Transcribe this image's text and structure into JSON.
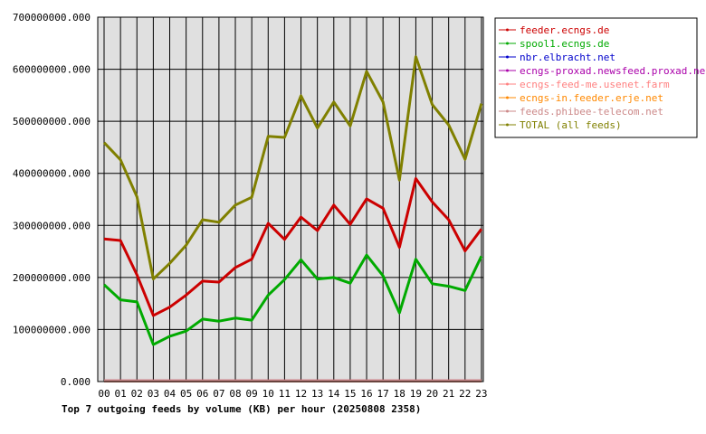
{
  "chart_data": {
    "type": "line",
    "title": "Top 7 outgoing feeds by volume (KB) per hour (20250808 2358)",
    "xlabel": "",
    "ylabel": "",
    "categories": [
      "00",
      "01",
      "02",
      "03",
      "04",
      "05",
      "06",
      "07",
      "08",
      "09",
      "10",
      "11",
      "12",
      "13",
      "14",
      "15",
      "16",
      "17",
      "18",
      "19",
      "20",
      "21",
      "22",
      "23"
    ],
    "ylim": [
      0,
      700000000
    ],
    "yticks": [
      0,
      100000000,
      200000000,
      300000000,
      400000000,
      500000000,
      600000000,
      700000000
    ],
    "ytick_labels": [
      "0.000",
      "100000000.000",
      "200000000.000",
      "300000000.000",
      "400000000.000",
      "500000000.000",
      "600000000.000",
      "700000000.000"
    ],
    "grid": true,
    "legend_position": "top-right",
    "series": [
      {
        "name": "feeder.ecngs.de",
        "color": "#cc0000",
        "values": [
          274000000,
          271000000,
          205000000,
          127000000,
          143000000,
          166000000,
          193000000,
          191000000,
          219000000,
          235000000,
          304000000,
          273000000,
          316000000,
          290000000,
          339000000,
          302000000,
          351000000,
          333000000,
          258000000,
          390000000,
          345000000,
          311000000,
          251000000,
          293000000
        ]
      },
      {
        "name": "spool1.ecngs.de",
        "color": "#00aa00",
        "values": [
          186000000,
          157000000,
          153000000,
          71000000,
          87000000,
          97000000,
          120000000,
          116000000,
          122000000,
          118000000,
          166000000,
          196000000,
          234000000,
          197000000,
          200000000,
          189000000,
          243000000,
          203000000,
          132000000,
          235000000,
          188000000,
          183000000,
          175000000,
          241000000
        ]
      },
      {
        "name": "nbr.elbracht.net",
        "color": "#0000cc",
        "values": [
          1000000,
          1000000,
          1000000,
          1000000,
          1000000,
          1000000,
          1000000,
          1000000,
          1000000,
          1000000,
          1000000,
          1000000,
          1000000,
          1000000,
          1000000,
          1000000,
          1000000,
          1000000,
          1000000,
          1000000,
          1000000,
          1000000,
          1000000,
          1000000
        ]
      },
      {
        "name": "ecngs-proxad.newsfeed.proxad.net",
        "color": "#aa00aa",
        "values": [
          1000000,
          1000000,
          1000000,
          1000000,
          1000000,
          1000000,
          1000000,
          1000000,
          1000000,
          1000000,
          1000000,
          1000000,
          1000000,
          1000000,
          1000000,
          1000000,
          1000000,
          1000000,
          1000000,
          1000000,
          1000000,
          1000000,
          1000000,
          1000000
        ]
      },
      {
        "name": "ecngs-feed-me.usenet.farm",
        "color": "#ff8080",
        "values": [
          1000000,
          1000000,
          1000000,
          1000000,
          1000000,
          1000000,
          1000000,
          1000000,
          1000000,
          1000000,
          1000000,
          1000000,
          1000000,
          1000000,
          1000000,
          1000000,
          1000000,
          1000000,
          1000000,
          1000000,
          1000000,
          1000000,
          1000000,
          1000000
        ]
      },
      {
        "name": "ecngs-in.feeder.erje.net",
        "color": "#ff8800",
        "values": [
          1000000,
          1000000,
          1000000,
          1000000,
          1000000,
          1000000,
          1000000,
          1000000,
          1000000,
          1000000,
          1000000,
          1000000,
          1000000,
          1000000,
          1000000,
          1000000,
          1000000,
          1000000,
          1000000,
          1000000,
          1000000,
          1000000,
          1000000,
          1000000
        ]
      },
      {
        "name": "feeds.phibee-telecom.net",
        "color": "#cc8888",
        "values": [
          1000000,
          1000000,
          1000000,
          1000000,
          1000000,
          1000000,
          1000000,
          1000000,
          1000000,
          1000000,
          1000000,
          1000000,
          1000000,
          1000000,
          1000000,
          1000000,
          1000000,
          1000000,
          1000000,
          1000000,
          1000000,
          1000000,
          1000000,
          1000000
        ]
      },
      {
        "name": "TOTAL (all feeds)",
        "color": "#808000",
        "values": [
          459000000,
          426000000,
          355000000,
          197000000,
          227000000,
          262000000,
          311000000,
          306000000,
          339000000,
          354000000,
          471000000,
          469000000,
          549000000,
          487000000,
          537000000,
          491000000,
          596000000,
          537000000,
          387000000,
          624000000,
          532000000,
          493000000,
          427000000,
          534000000
        ]
      }
    ]
  }
}
